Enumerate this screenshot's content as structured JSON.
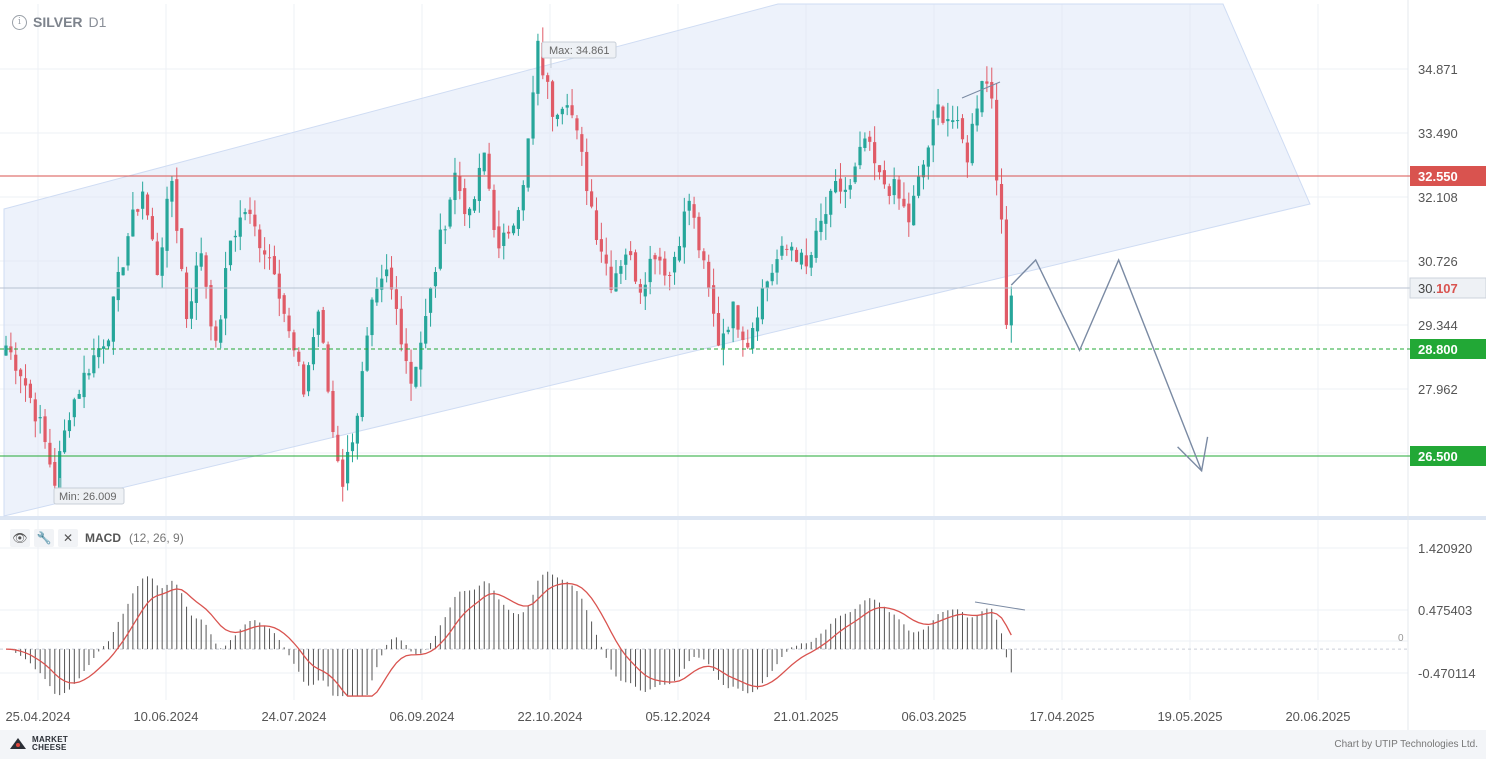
{
  "header": {
    "symbol": "SILVER",
    "timeframe": "D1",
    "info_icon": "info-icon"
  },
  "chart_data": {
    "type": "candlestick",
    "instrument": "SILVER",
    "timeframe": "D1",
    "price_axis": {
      "ylim": [
        25.5,
        35.7
      ],
      "tick_labels": [
        "34.871",
        "33.490",
        "32.108",
        "30.726",
        "29.344",
        "27.962"
      ]
    },
    "date_axis": {
      "tick_labels": [
        "25.04.2024",
        "10.06.2024",
        "24.07.2024",
        "06.09.2024",
        "22.10.2024",
        "05.12.2024",
        "21.01.2025",
        "06.03.2025",
        "17.04.2025",
        "19.05.2025",
        "20.06.2025"
      ]
    },
    "price_pivots": [
      [
        0,
        28.9
      ],
      [
        3,
        28.4
      ],
      [
        7,
        27.3
      ],
      [
        10,
        26.2
      ],
      [
        13,
        27.6
      ],
      [
        17,
        28.5
      ],
      [
        21,
        29.2
      ],
      [
        25,
        31.1
      ],
      [
        28,
        32.0
      ],
      [
        31,
        30.4
      ],
      [
        34,
        32.2
      ],
      [
        37,
        29.5
      ],
      [
        40,
        30.8
      ],
      [
        43,
        28.8
      ],
      [
        46,
        31.0
      ],
      [
        49,
        31.6
      ],
      [
        52,
        31.0
      ],
      [
        55,
        30.5
      ],
      [
        58,
        29.1
      ],
      [
        61,
        28.0
      ],
      [
        64,
        29.6
      ],
      [
        67,
        27.2
      ],
      [
        69,
        26.2
      ],
      [
        72,
        27.6
      ],
      [
        75,
        29.6
      ],
      [
        78,
        30.3
      ],
      [
        80,
        29.6
      ],
      [
        83,
        28.2
      ],
      [
        86,
        29.4
      ],
      [
        89,
        31.0
      ],
      [
        92,
        32.3
      ],
      [
        95,
        31.4
      ],
      [
        98,
        32.7
      ],
      [
        101,
        30.7
      ],
      [
        104,
        31.5
      ],
      [
        106,
        32.0
      ],
      [
        109,
        34.8
      ],
      [
        112,
        33.6
      ],
      [
        115,
        33.9
      ],
      [
        118,
        32.6
      ],
      [
        121,
        31.2
      ],
      [
        124,
        30.2
      ],
      [
        127,
        30.8
      ],
      [
        130,
        30.1
      ],
      [
        133,
        30.8
      ],
      [
        136,
        30.3
      ],
      [
        138,
        31.1
      ],
      [
        140,
        31.8
      ],
      [
        143,
        30.4
      ],
      [
        146,
        29.0
      ],
      [
        149,
        29.6
      ],
      [
        152,
        29.0
      ],
      [
        155,
        30.0
      ],
      [
        158,
        30.6
      ],
      [
        161,
        30.9
      ],
      [
        164,
        30.4
      ],
      [
        167,
        31.3
      ],
      [
        170,
        32.0
      ],
      [
        173,
        32.0
      ],
      [
        176,
        33.0
      ],
      [
        179,
        32.2
      ],
      [
        182,
        32.0
      ],
      [
        185,
        31.4
      ],
      [
        188,
        32.5
      ],
      [
        191,
        33.6
      ],
      [
        194,
        33.4
      ],
      [
        197,
        32.7
      ],
      [
        200,
        34.3
      ],
      [
        202,
        33.9
      ],
      [
        203,
        32.4
      ],
      [
        204,
        31.2
      ],
      [
        205,
        29.3
      ],
      [
        206,
        30.1
      ]
    ],
    "levels": [
      {
        "name": "resistance",
        "value": "32.550",
        "color": "#d9534f"
      },
      {
        "name": "current",
        "value_prefix": "30.",
        "value_suffix": "107",
        "color": "#b8c2d0"
      },
      {
        "name": "support-dashed",
        "value": "28.800",
        "color": "#22a836"
      },
      {
        "name": "target",
        "value": "26.500",
        "color": "#22a836"
      }
    ],
    "annotations": {
      "max": "Max: 34.861",
      "min": "Min: 26.009"
    },
    "channel": {
      "color": "#cfdcf3"
    },
    "forecast_path": [
      [
        206,
        30.1
      ],
      [
        211,
        30.6
      ],
      [
        220,
        28.8
      ],
      [
        228,
        30.6
      ],
      [
        245,
        26.4
      ]
    ],
    "colors": {
      "up": "#26a69a",
      "down": "#e05b67",
      "grid": "#eef1f5"
    }
  },
  "macd": {
    "label": "MACD",
    "params": "(12, 26, 9)",
    "icons": [
      "eye-icon",
      "wrench-icon",
      "close-icon"
    ],
    "tick_labels": [
      "1.420920",
      "0.475403",
      "0",
      "-0.470114"
    ],
    "ylim": [
      -0.65,
      1.65
    ],
    "signal_color": "#d9534f",
    "hist_color": "#555555"
  },
  "footer": {
    "logo_line1": "MARKET",
    "logo_line2": "CHEESE",
    "credit": "Chart by UTIP Technologies Ltd."
  }
}
